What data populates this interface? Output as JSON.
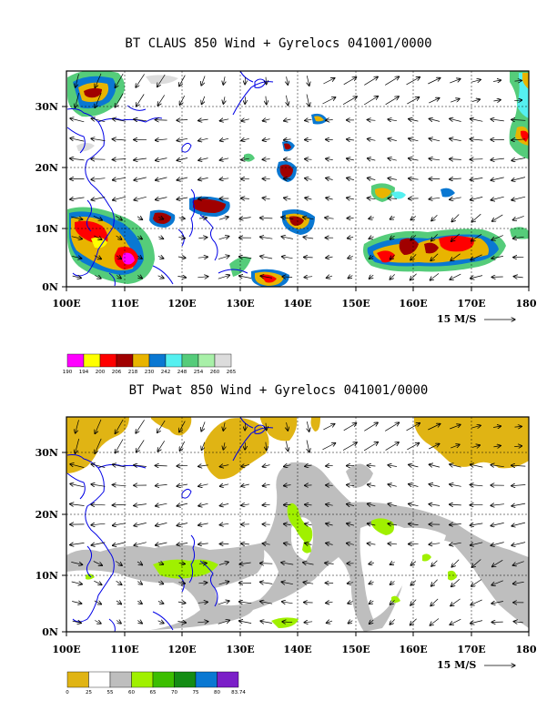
{
  "panels": [
    {
      "title": "BT CLAUS 850 Wind + Gyrelocs 041001/0000",
      "lat_labels": [
        "30N",
        "20N",
        "10N",
        "0N"
      ],
      "lon_labels": [
        "100E",
        "110E",
        "120E",
        "130E",
        "140E",
        "150E",
        "160E",
        "170E",
        "180"
      ],
      "vector_ref": "15 M/S",
      "colorbar": {
        "colors": [
          "#ff00ff",
          "#ffff00",
          "#ff0000",
          "#a00000",
          "#e8b400",
          "#0a78d2",
          "#55f0f0",
          "#55cc7a",
          "#a8f0a8",
          "#dcdcdc"
        ],
        "labels": [
          "190",
          "194",
          "200",
          "206",
          "218",
          "230",
          "242",
          "248",
          "254",
          "260",
          "265"
        ]
      }
    },
    {
      "title": "BT Pwat 850 Wind + Gyrelocs 041001/0000",
      "lat_labels": [
        "30N",
        "20N",
        "10N",
        "0N"
      ],
      "lon_labels": [
        "100E",
        "110E",
        "120E",
        "130E",
        "140E",
        "150E",
        "160E",
        "170E",
        "180"
      ],
      "vector_ref": "15 M/S",
      "colorbar": {
        "colors": [
          "#e0b414",
          "#ffffff",
          "#bebebe",
          "#a0f000",
          "#3cbe00",
          "#148c14",
          "#0a78d2",
          "#7b1fc8"
        ],
        "labels": [
          "0",
          "25",
          "55",
          "60",
          "65",
          "70",
          "75",
          "80",
          "83.74"
        ]
      }
    }
  ]
}
